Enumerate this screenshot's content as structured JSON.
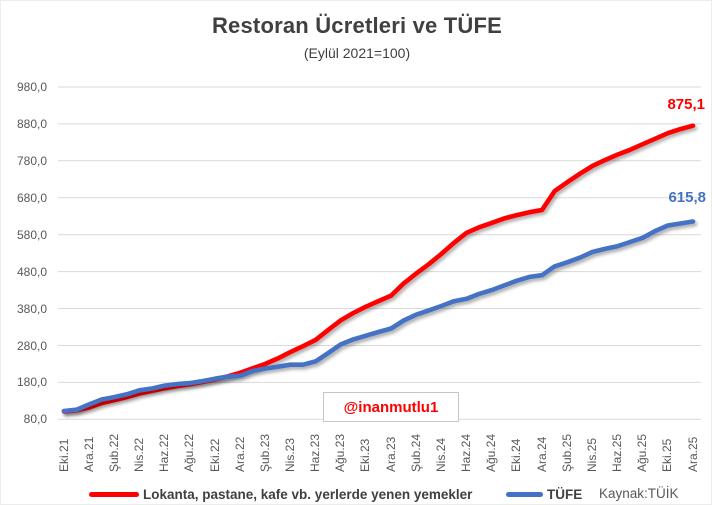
{
  "watermark": "@inanmutlu1",
  "source": "Kaynak:TÜİK",
  "colors": {
    "restaurant_line": "#ff0000",
    "tufe_line": "#4472c4",
    "gridline": "#d9d9d9",
    "axis_text": "#595959",
    "title_text": "#404040",
    "watermark_text": "#ff0000"
  },
  "chart_data": {
    "type": "line",
    "title": "Restoran Ücretleri ve TÜFE",
    "subtitle": "(Eylül 2021=100)",
    "grid": true,
    "legend_position": "bottom",
    "ylim": [
      80,
      980
    ],
    "y_tick_step": 100,
    "y_tick_labels": [
      "980,0",
      "880,0",
      "780,0",
      "680,0",
      "580,0",
      "480,0",
      "380,0",
      "280,0",
      "180,0",
      "80,0"
    ],
    "x_tick_labels": [
      "Eki.21",
      "Ara.21",
      "Şub.22",
      "Nis.22",
      "Haz.22",
      "Ağu.22",
      "Eki.22",
      "Ara.22",
      "Şub.23",
      "Nis.23",
      "Haz.23",
      "Ağu.23",
      "Eki.23",
      "Ara.23",
      "Şub.24",
      "Nis.24",
      "Haz.24",
      "Ağu.24",
      "Eki.24",
      "Ara.24",
      "Şub.25",
      "Nis.25",
      "Haz.25",
      "Ağu.25",
      "Eki.25",
      "Ara.25"
    ],
    "points_per_tick": 2,
    "n_points": 51,
    "series": [
      {
        "name": "Lokanta, pastane, kafe vb. yerlerde yenen yemekler",
        "color": "#ff0000",
        "end_label": "875,1",
        "end_value": 875.1,
        "values": [
          101.5,
          104.5,
          112,
          124,
          132,
          140,
          150,
          157,
          164,
          170,
          175,
          181,
          188,
          196,
          206,
          218,
          230,
          245,
          262,
          278,
          295,
          322,
          348,
          368,
          385,
          400,
          415,
          448,
          475,
          500,
          528,
          558,
          585,
          600,
          612,
          624,
          633,
          641,
          647,
          698,
          722,
          745,
          766,
          782,
          797,
          810,
          825,
          840,
          855,
          866,
          875.1
        ]
      },
      {
        "name": "TÜFE",
        "color": "#4472c4",
        "end_label": "615,8",
        "end_value": 615.8,
        "values": [
          102.4,
          106,
          120.4,
          133.7,
          140.2,
          147.8,
          158.5,
          163.3,
          171.3,
          175.4,
          178,
          183.4,
          189.9,
          195.4,
          197.7,
          210.9,
          217.5,
          222.5,
          227.8,
          227.9,
          236.8,
          259.3,
          282.9,
          296.3,
          306.5,
          316.5,
          325.8,
          347.6,
          363.4,
          374.9,
          386.8,
          399.8,
          406.4,
          419.5,
          429.9,
          442.6,
          455.4,
          465.6,
          470.4,
          494,
          505.3,
          517.7,
          533.2,
          541.4,
          548.8,
          560.1,
          571.5,
          590,
          605,
          610.3,
          615.8
        ]
      }
    ]
  }
}
